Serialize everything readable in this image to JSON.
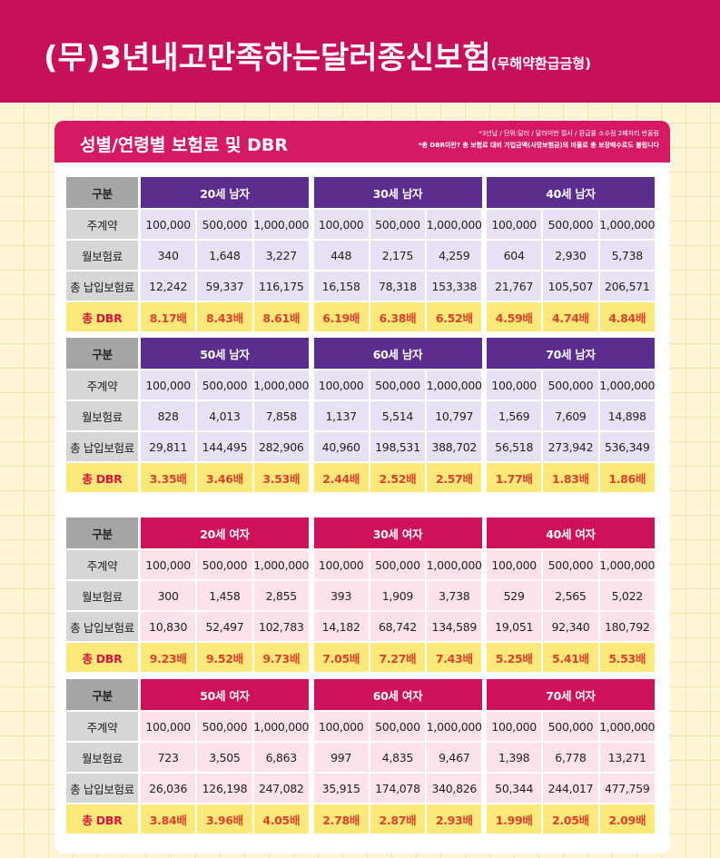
{
  "header": {
    "title": "(무)3년내고만족하는달러종신보험",
    "subtitle": "(무해약환급금형)"
  },
  "section": {
    "title": "성별/연령별 보험료 및 DBR",
    "notes": [
      "*3년납 / 단위:달러 / 달러미만 절사 / 환급률 소수점 2째자리 반올림",
      "*총 DBR이란? 총 보험료 대비 가입금액(사망보험금)의 비율로 총 보장배수로도 불립니다"
    ]
  },
  "blocks": [
    {
      "header_color": "#5b2d8e",
      "cell_color": "#e6e2f4",
      "labels": [
        "구분",
        "주계약",
        "월보험료",
        "총 납입보험료",
        "총 DBR"
      ],
      "groups": [
        {
          "name": "20세 남자",
          "rows": [
            [
              "100,000",
              "500,000",
              "1,000,000"
            ],
            [
              "340",
              "1,648",
              "3,227"
            ],
            [
              "12,242",
              "59,337",
              "116,175"
            ],
            [
              "8.17배",
              "8.43배",
              "8.61배"
            ]
          ]
        },
        {
          "name": "30세 남자",
          "rows": [
            [
              "100,000",
              "500,000",
              "1,000,000"
            ],
            [
              "448",
              "2,175",
              "4,259"
            ],
            [
              "16,158",
              "78,318",
              "153,338"
            ],
            [
              "6.19배",
              "6.38배",
              "6.52배"
            ]
          ]
        },
        {
          "name": "40세 남자",
          "rows": [
            [
              "100,000",
              "500,000",
              "1,000,000"
            ],
            [
              "604",
              "2,930",
              "5,738"
            ],
            [
              "21,767",
              "105,507",
              "206,571"
            ],
            [
              "4.59배",
              "4.74배",
              "4.84배"
            ]
          ]
        }
      ]
    },
    {
      "header_color": "#5b2d8e",
      "cell_color": "#e6e2f4",
      "labels": [
        "구분",
        "주계약",
        "월보험료",
        "총 납입보험료",
        "총 DBR"
      ],
      "groups": [
        {
          "name": "50세 남자",
          "rows": [
            [
              "100,000",
              "500,000",
              "1,000,000"
            ],
            [
              "828",
              "4,013",
              "7,858"
            ],
            [
              "29,811",
              "144,495",
              "282,906"
            ],
            [
              "3.35배",
              "3.46배",
              "3.53배"
            ]
          ]
        },
        {
          "name": "60세 남자",
          "rows": [
            [
              "100,000",
              "500,000",
              "1,000,000"
            ],
            [
              "1,137",
              "5,514",
              "10,797"
            ],
            [
              "40,960",
              "198,531",
              "388,702"
            ],
            [
              "2.44배",
              "2.52배",
              "2.57배"
            ]
          ]
        },
        {
          "name": "70세 남자",
          "rows": [
            [
              "100,000",
              "500,000",
              "1,000,000"
            ],
            [
              "1,569",
              "7,609",
              "14,898"
            ],
            [
              "56,518",
              "273,942",
              "536,349"
            ],
            [
              "1.77배",
              "1.83배",
              "1.86배"
            ]
          ]
        }
      ]
    },
    {
      "header_color": "#cf1159",
      "cell_color": "#fde2ec",
      "labels": [
        "구분",
        "주계약",
        "월보험료",
        "총 납입보험료",
        "총 DBR"
      ],
      "groups": [
        {
          "name": "20세 여자",
          "rows": [
            [
              "100,000",
              "500,000",
              "1,000,000"
            ],
            [
              "300",
              "1,458",
              "2,855"
            ],
            [
              "10,830",
              "52,497",
              "102,783"
            ],
            [
              "9.23배",
              "9.52배",
              "9.73배"
            ]
          ]
        },
        {
          "name": "30세 여자",
          "rows": [
            [
              "100,000",
              "500,000",
              "1,000,000"
            ],
            [
              "393",
              "1,909",
              "3,738"
            ],
            [
              "14,182",
              "68,742",
              "134,589"
            ],
            [
              "7.05배",
              "7.27배",
              "7.43배"
            ]
          ]
        },
        {
          "name": "40세 여자",
          "rows": [
            [
              "100,000",
              "500,000",
              "1,000,000"
            ],
            [
              "529",
              "2,565",
              "5,022"
            ],
            [
              "19,051",
              "92,340",
              "180,792"
            ],
            [
              "5.25배",
              "5.41배",
              "5.53배"
            ]
          ]
        }
      ]
    },
    {
      "header_color": "#cf1159",
      "cell_color": "#fde2ec",
      "labels": [
        "구분",
        "주계약",
        "월보험료",
        "총 납입보험료",
        "총 DBR"
      ],
      "groups": [
        {
          "name": "50세 여자",
          "rows": [
            [
              "100,000",
              "500,000",
              "1,000,000"
            ],
            [
              "723",
              "3,505",
              "6,863"
            ],
            [
              "26,036",
              "126,198",
              "247,082"
            ],
            [
              "3.84배",
              "3.96배",
              "4.05배"
            ]
          ]
        },
        {
          "name": "60세 여자",
          "rows": [
            [
              "100,000",
              "500,000",
              "1,000,000"
            ],
            [
              "997",
              "4,835",
              "9,467"
            ],
            [
              "35,915",
              "174,078",
              "340,826"
            ],
            [
              "2.78배",
              "2.87배",
              "2.93배"
            ]
          ]
        },
        {
          "name": "70세 여자",
          "rows": [
            [
              "100,000",
              "500,000",
              "1,000,000"
            ],
            [
              "1,398",
              "6,778",
              "13,271"
            ],
            [
              "50,344",
              "244,017",
              "477,759"
            ],
            [
              "1.99배",
              "2.05배",
              "2.09배"
            ]
          ]
        }
      ]
    }
  ]
}
